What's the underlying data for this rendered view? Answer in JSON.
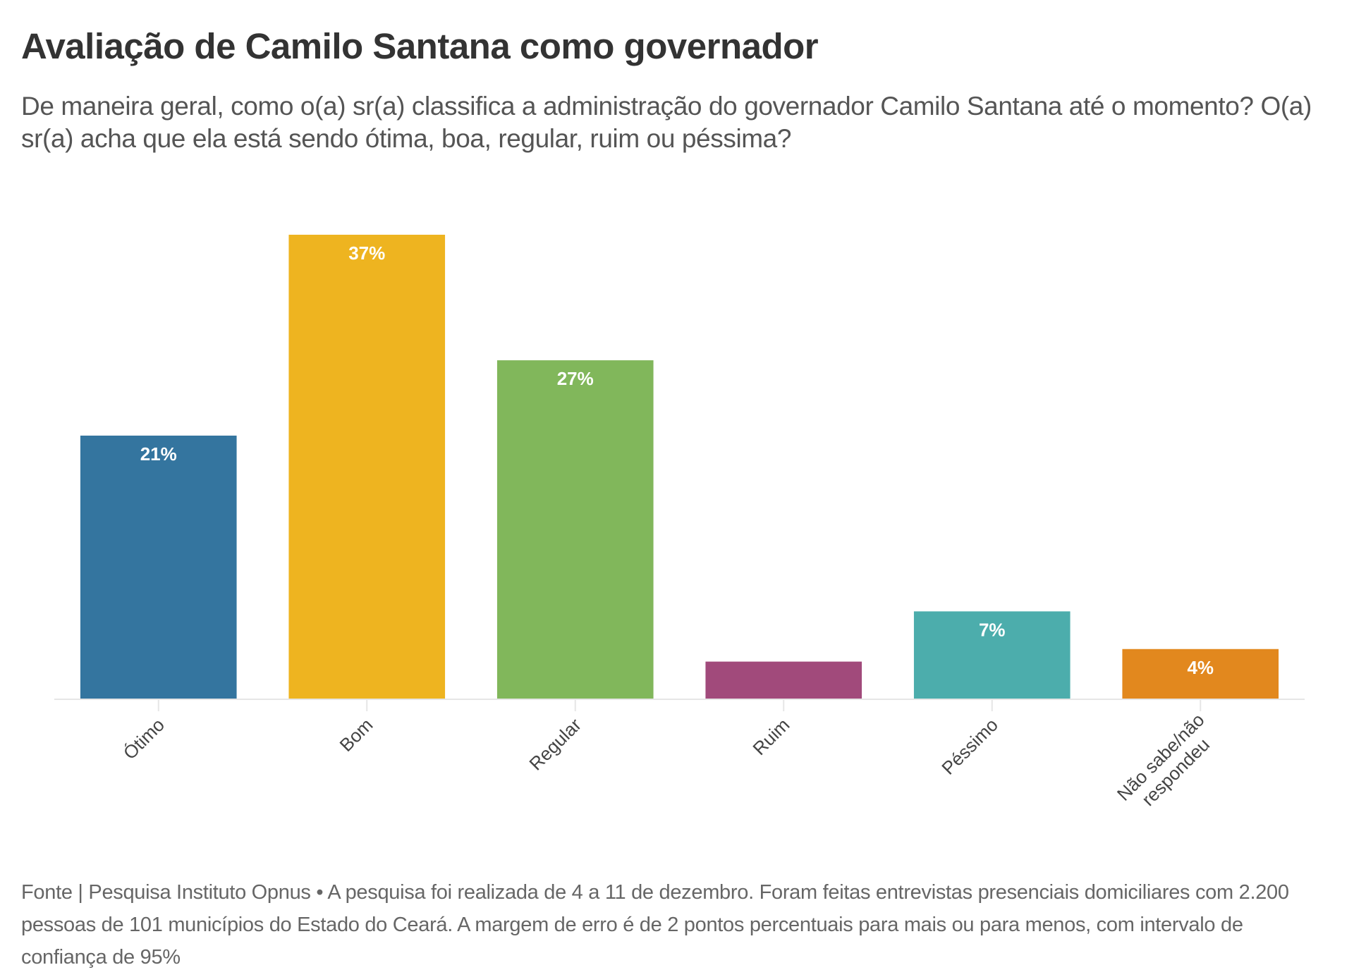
{
  "header": {
    "title": "Avaliação de Camilo Santana como governador",
    "subtitle": "De maneira geral, como o(a) sr(a) classifica a administração do governador Camilo Santana até o momento? O(a) sr(a) acha que ela está sendo ótima, boa, regular, ruim ou péssima?"
  },
  "footer": {
    "text": "Fonte | Pesquisa Instituto Opnus • A pesquisa foi realizada de 4 a 11 de dezembro. Foram feitas entrevistas presenciais domiciliares com 2.200 pessoas de 101 municípios do Estado do Ceará. A margem de erro é de 2 pontos percentuais para mais ou para menos, com intervalo de confiança de 95%"
  },
  "chart_data": {
    "type": "bar",
    "title": "Avaliação de Camilo Santana como governador",
    "subtitle": "De maneira geral, como o(a) sr(a) classifica a administração do governador Camilo Santana até o momento? O(a) sr(a) acha que ela está sendo ótima, boa, regular, ruim ou péssima?",
    "xlabel": "",
    "ylabel": "",
    "categories": [
      "Ótimo",
      "Bom",
      "Regular",
      "Ruim",
      "Péssimo",
      "Não sabe/não respondeu"
    ],
    "category_lines": [
      [
        "Ótimo"
      ],
      [
        "Bom"
      ],
      [
        "Regular"
      ],
      [
        "Ruim"
      ],
      [
        "Péssimo"
      ],
      [
        "Não sabe/não",
        "respondeu"
      ]
    ],
    "values": [
      21,
      37,
      27,
      3,
      7,
      4
    ],
    "value_labels": [
      "21%",
      "37%",
      "27%",
      "",
      "7%",
      "4%"
    ],
    "unit": "%",
    "colors": [
      "#34759f",
      "#eeb420",
      "#81b75b",
      "#a14a7b",
      "#4cadac",
      "#e2881e"
    ],
    "ylim": [
      0,
      37
    ],
    "grid": false,
    "legend": "none",
    "y_axis_visible": false,
    "x_tick_rotation": "-45"
  }
}
